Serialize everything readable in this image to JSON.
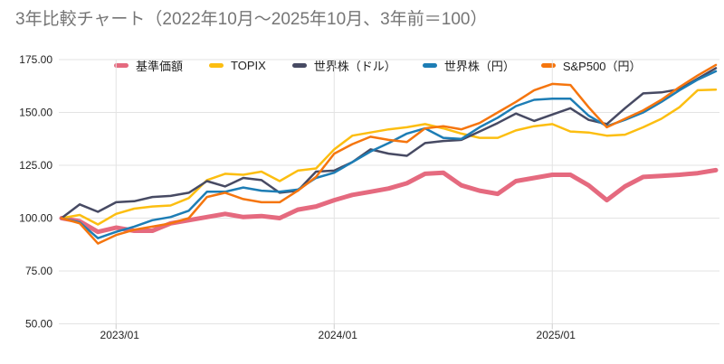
{
  "title": "3年比較チャート（2022年10月～2025年10月、3年前＝100）",
  "colors": {
    "background": "#ffffff",
    "title_text": "#757575",
    "axis_text": "#222222",
    "gridline": "#e3e3e3",
    "tick": "#cccccc",
    "legend_text": "#222222"
  },
  "chart_data": {
    "type": "line",
    "title": "3年比較チャート（2022年10月～2025年10月、3年前＝100）",
    "xlabel": "",
    "ylabel": "",
    "ylim": [
      50,
      175
    ],
    "grid": true,
    "legend_position": "top",
    "x": [
      "2022/10",
      "2022/11",
      "2022/12",
      "2023/01",
      "2023/02",
      "2023/03",
      "2023/04",
      "2023/05",
      "2023/06",
      "2023/07",
      "2023/08",
      "2023/09",
      "2023/10",
      "2023/11",
      "2023/12",
      "2024/01",
      "2024/02",
      "2024/03",
      "2024/04",
      "2024/05",
      "2024/06",
      "2024/07",
      "2024/08",
      "2024/09",
      "2024/10",
      "2024/11",
      "2024/12",
      "2025/01",
      "2025/02",
      "2025/03",
      "2025/04",
      "2025/05",
      "2025/06",
      "2025/07",
      "2025/08",
      "2025/09",
      "2025/10"
    ],
    "yticks": [
      {
        "value": 175,
        "label": "175.00"
      },
      {
        "value": 150,
        "label": "150.00"
      },
      {
        "value": 125,
        "label": "125.00"
      },
      {
        "value": 100,
        "label": "100.00"
      },
      {
        "value": 75,
        "label": "75.00"
      },
      {
        "value": 50,
        "label": "50.00"
      }
    ],
    "xticks": [
      {
        "index": 3,
        "label": "2023/01"
      },
      {
        "index": 15,
        "label": "2024/01"
      },
      {
        "index": 27,
        "label": "2025/01"
      }
    ],
    "series": [
      {
        "name": "基準価額",
        "color": "#e56a7f",
        "width": 5,
        "values": [
          100,
          98.5,
          93.5,
          95.5,
          94,
          94,
          97.5,
          99,
          100.5,
          102,
          100.5,
          101,
          100,
          104,
          105.5,
          108.5,
          111,
          112.5,
          114,
          116.5,
          121,
          121.5,
          115.5,
          113,
          111.5,
          117.5,
          119,
          120.5,
          120.5,
          115.5,
          108.5,
          115,
          119.5,
          120,
          120.5,
          121.3,
          122.7
        ]
      },
      {
        "name": "TOPIX",
        "color": "#fcbe11",
        "width": 2.5,
        "values": [
          100,
          101.5,
          97,
          102,
          104.5,
          105.5,
          106,
          109.5,
          118,
          121,
          120.5,
          122,
          117.5,
          122.5,
          123.5,
          132.5,
          139,
          140.5,
          142,
          143,
          144.5,
          142.5,
          140,
          138,
          138,
          141.5,
          143.5,
          144.5,
          141,
          140.5,
          139,
          139.5,
          143,
          147,
          152.5,
          160.5,
          160.8
        ]
      },
      {
        "name": "世界株（ドル）",
        "color": "#474a63",
        "width": 2.5,
        "values": [
          100,
          106.5,
          103,
          107.5,
          108,
          110,
          110.5,
          112,
          117.5,
          115,
          119,
          118,
          112,
          113,
          122,
          122.5,
          126.5,
          132.5,
          130.5,
          129.5,
          135.5,
          136.5,
          137,
          141,
          145,
          149.5,
          146,
          149,
          152,
          146.5,
          144.5,
          152,
          159,
          159.5,
          161,
          166,
          171
        ]
      },
      {
        "name": "世界株（円）",
        "color": "#1d7db5",
        "width": 2.5,
        "values": [
          100,
          98,
          90.5,
          93.5,
          96,
          99,
          100.5,
          103.5,
          112.5,
          112.5,
          114.5,
          113,
          112.5,
          113.5,
          119,
          121.5,
          126.5,
          131.5,
          135.5,
          140,
          142.5,
          138,
          137.5,
          143,
          147.5,
          153,
          156,
          156.5,
          156.5,
          148.5,
          143.5,
          146.5,
          150,
          155,
          160.5,
          165.5,
          169.5
        ]
      },
      {
        "name": "S&P500（円）",
        "color": "#f5750e",
        "width": 2.5,
        "values": [
          100,
          97.5,
          88,
          92,
          94.5,
          96,
          97.5,
          100,
          110,
          112,
          109,
          107.5,
          107.5,
          113,
          119.5,
          130.5,
          135,
          138.5,
          137,
          136,
          142.5,
          143.5,
          142,
          145,
          150,
          155,
          160.5,
          163.5,
          163,
          152.5,
          143,
          147,
          151,
          156,
          162,
          167.5,
          172.5
        ]
      }
    ]
  }
}
